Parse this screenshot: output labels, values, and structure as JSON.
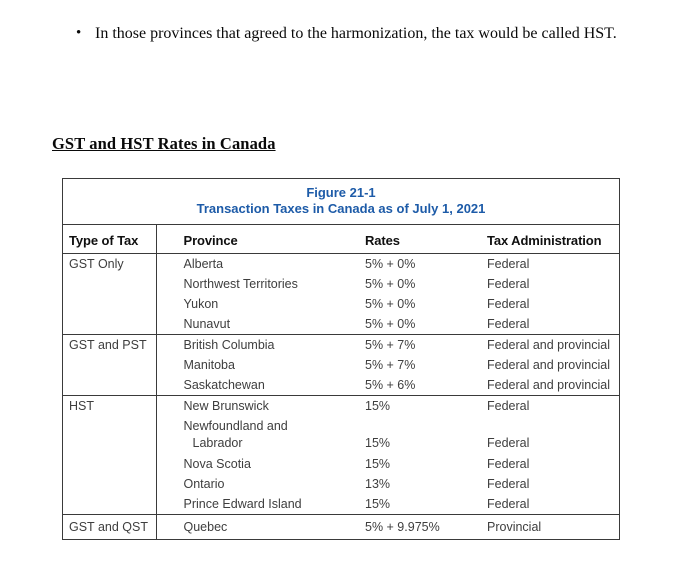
{
  "page": {
    "bullet_glyph": "•",
    "bullet_text": "In those provinces that agreed to the harmonization, the tax would be called HST.",
    "section_heading": "GST and HST Rates in Canada"
  },
  "figure": {
    "title_line1": "Figure 21-1",
    "title_line2": "Transaction Taxes in Canada as of July 1, 2021",
    "accent_color": "#1d5ba8",
    "columns": [
      "Type of Tax",
      "Province",
      "Rates",
      "Tax Administration"
    ],
    "groups": [
      {
        "type": "GST Only",
        "rows": [
          {
            "province": "Alberta",
            "rate": "5% + 0%",
            "admin": "Federal"
          },
          {
            "province": "Northwest Territories",
            "rate": "5% + 0%",
            "admin": "Federal"
          },
          {
            "province": "Yukon",
            "rate": "5% + 0%",
            "admin": "Federal"
          },
          {
            "province": "Nunavut",
            "rate": "5% + 0%",
            "admin": "Federal"
          }
        ]
      },
      {
        "type": "GST and PST",
        "rows": [
          {
            "province": "British Columbia",
            "rate": "5% + 7%",
            "admin": "Federal and provincial"
          },
          {
            "province": "Manitoba",
            "rate": "5% + 7%",
            "admin": "Federal and provincial"
          },
          {
            "province": "Saskatchewan",
            "rate": "5% + 6%",
            "admin": "Federal and provincial"
          }
        ]
      },
      {
        "type": "HST",
        "rows": [
          {
            "province": "New Brunswick",
            "rate": "15%",
            "admin": "Federal"
          },
          {
            "province_lines": [
              "Newfoundland and",
              "Labrador"
            ],
            "rate": "15%",
            "admin": "Federal"
          },
          {
            "province": "Nova Scotia",
            "rate": "15%",
            "admin": "Federal"
          },
          {
            "province": "Ontario",
            "rate": "13%",
            "admin": "Federal"
          },
          {
            "province": "Prince Edward Island",
            "rate": "15%",
            "admin": "Federal"
          }
        ]
      },
      {
        "type": "GST and QST",
        "rows": [
          {
            "province": "Quebec",
            "rate": "5% + 9.975%",
            "admin": "Provincial"
          }
        ]
      }
    ]
  }
}
